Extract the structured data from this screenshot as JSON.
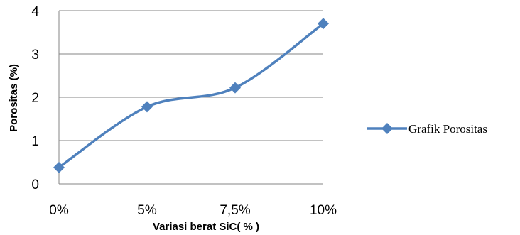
{
  "chart_data": {
    "type": "line",
    "title": "",
    "xlabel": "Variasi berat SiC( % )",
    "ylabel": "Porositas (%)",
    "categories": [
      "0%",
      "5%",
      "7,5%",
      "10%"
    ],
    "series": [
      {
        "name": "Grafik Porositas",
        "values": [
          0.38,
          1.78,
          2.22,
          3.7
        ],
        "color": "#4F81BD"
      }
    ],
    "ylim": [
      0,
      4
    ],
    "yticks": [
      "0",
      "1",
      "2",
      "3",
      "4"
    ],
    "grid": true,
    "legend": "right",
    "smooth": true,
    "marker": "diamond"
  }
}
